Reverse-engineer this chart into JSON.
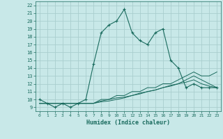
{
  "xlabel": "Humidex (Indice chaleur)",
  "xlim": [
    -0.5,
    23.5
  ],
  "ylim": [
    8.5,
    22.5
  ],
  "yticks": [
    9,
    10,
    11,
    12,
    13,
    14,
    15,
    16,
    17,
    18,
    19,
    20,
    21,
    22
  ],
  "xticks": [
    0,
    1,
    2,
    3,
    4,
    5,
    6,
    7,
    8,
    9,
    10,
    11,
    12,
    13,
    14,
    15,
    16,
    17,
    18,
    19,
    20,
    21,
    22,
    23
  ],
  "bg_color": "#c8e8e8",
  "grid_color": "#aacece",
  "line_color": "#1a6b5e",
  "lines": [
    {
      "x": [
        0,
        1,
        2,
        3,
        4,
        5,
        6,
        7,
        8,
        9,
        10,
        11,
        12,
        13,
        14,
        15,
        16,
        17,
        18,
        19,
        20,
        21,
        22,
        23
      ],
      "y": [
        10,
        9.5,
        9,
        9.5,
        9,
        9.5,
        10,
        14.5,
        18.5,
        19.5,
        20,
        21.5,
        18.5,
        17.5,
        17,
        18.5,
        19,
        15,
        14,
        11.5,
        12,
        11.5,
        11.5,
        11.5
      ],
      "marker": "+",
      "markersize": 3.5,
      "linewidth": 0.8
    },
    {
      "x": [
        0,
        1,
        2,
        3,
        4,
        5,
        6,
        7,
        8,
        9,
        10,
        11,
        12,
        13,
        14,
        15,
        16,
        17,
        18,
        19,
        20,
        21,
        22,
        23
      ],
      "y": [
        9.5,
        9.5,
        9.5,
        9.5,
        9.5,
        9.5,
        9.5,
        9.5,
        10,
        10,
        10.5,
        10.5,
        11,
        11,
        11.5,
        11.5,
        12,
        12,
        12.5,
        13,
        13.5,
        13,
        13,
        13.5
      ],
      "marker": null,
      "markersize": 0,
      "linewidth": 0.7
    },
    {
      "x": [
        0,
        1,
        2,
        3,
        4,
        5,
        6,
        7,
        8,
        9,
        10,
        11,
        12,
        13,
        14,
        15,
        16,
        17,
        18,
        19,
        20,
        21,
        22,
        23
      ],
      "y": [
        9.5,
        9.5,
        9.5,
        9.5,
        9.5,
        9.5,
        9.5,
        9.5,
        9.8,
        10,
        10.2,
        10.3,
        10.5,
        10.8,
        11,
        11.2,
        11.5,
        11.8,
        12,
        12.5,
        13,
        12.5,
        12,
        11.5
      ],
      "marker": null,
      "markersize": 0,
      "linewidth": 0.7
    },
    {
      "x": [
        0,
        1,
        2,
        3,
        4,
        5,
        6,
        7,
        8,
        9,
        10,
        11,
        12,
        13,
        14,
        15,
        16,
        17,
        18,
        19,
        20,
        21,
        22,
        23
      ],
      "y": [
        9.5,
        9.5,
        9.5,
        9.5,
        9.5,
        9.5,
        9.5,
        9.5,
        9.7,
        9.8,
        10,
        10.2,
        10.5,
        10.7,
        11,
        11.2,
        11.5,
        11.7,
        12,
        12.2,
        12.5,
        12.0,
        11.7,
        11.5
      ],
      "marker": null,
      "markersize": 0,
      "linewidth": 0.7
    }
  ]
}
